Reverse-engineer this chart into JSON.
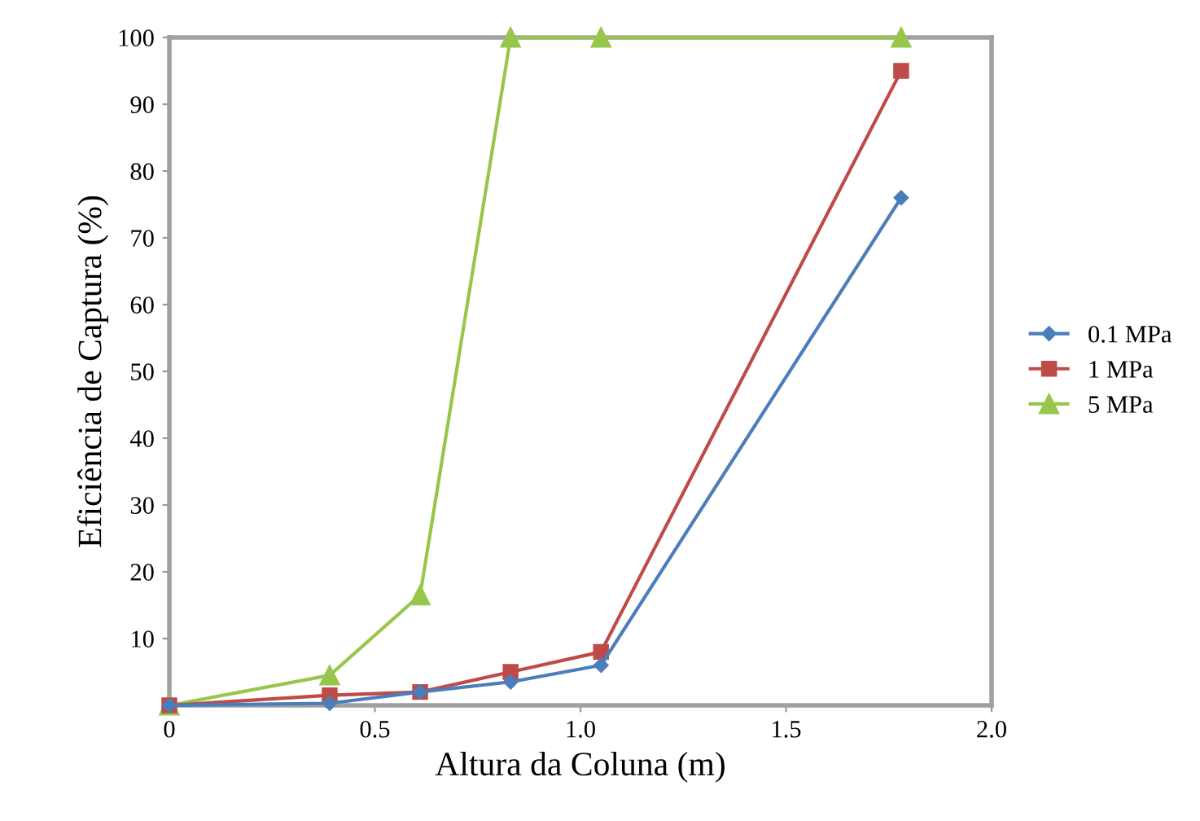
{
  "chart_data": {
    "type": "line",
    "xlabel": "Altura da Coluna (m)",
    "ylabel": "Eficiência de Captura (%)",
    "x": [
      0,
      0.39,
      0.61,
      0.83,
      1.05,
      1.78
    ],
    "series": [
      {
        "name": "0.1 MPa",
        "color": "#4a7ebb",
        "values": [
          0,
          0.3,
          2,
          3.5,
          6,
          76
        ],
        "marker": "diamond"
      },
      {
        "name": "1 MPa",
        "color": "#be4b48",
        "values": [
          0,
          1.5,
          2,
          5,
          8,
          95
        ],
        "marker": "square"
      },
      {
        "name": "5 MPa",
        "color": "#98c64a",
        "values": [
          0,
          4.5,
          16.5,
          100,
          100,
          100
        ],
        "marker": "triangle"
      }
    ],
    "xlim": [
      0,
      2.0
    ],
    "xticks": [
      0,
      0.5,
      {
        "value": 1.0,
        "label": "1.0"
      },
      1.5,
      {
        "value": 2.0,
        "label": "2.0"
      }
    ],
    "ylim": [
      0,
      100
    ],
    "yticks": [
      10,
      20,
      30,
      40,
      50,
      60,
      70,
      80,
      90,
      100
    ],
    "grid": false,
    "legend": "right",
    "line_style": "solid"
  }
}
